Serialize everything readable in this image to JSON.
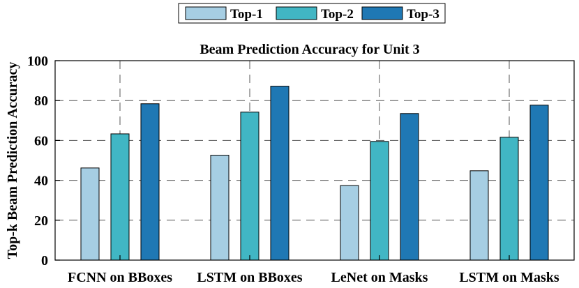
{
  "chart_data": {
    "type": "bar",
    "title": "Beam Prediction Accuracy for Unit 3",
    "xlabel": "",
    "ylabel": "Top-k Beam Prediction Accuracy",
    "ylim": [
      0,
      100
    ],
    "yticks": [
      0,
      20,
      40,
      60,
      80,
      100
    ],
    "grid": true,
    "legend_position": "top-center",
    "categories": [
      "FCNN on BBoxes",
      "LSTM on BBoxes",
      "LeNet on Masks",
      "LSTM on Masks"
    ],
    "series": [
      {
        "name": "Top-1",
        "color": "#a6cee3",
        "values": [
          46.2,
          52.6,
          37.4,
          44.8
        ]
      },
      {
        "name": "Top-2",
        "color": "#41b6c4",
        "values": [
          63.3,
          74.2,
          59.5,
          61.6
        ]
      },
      {
        "name": "Top-3",
        "color": "#1f78b4",
        "values": [
          78.4,
          87.2,
          73.5,
          77.7
        ]
      }
    ]
  }
}
